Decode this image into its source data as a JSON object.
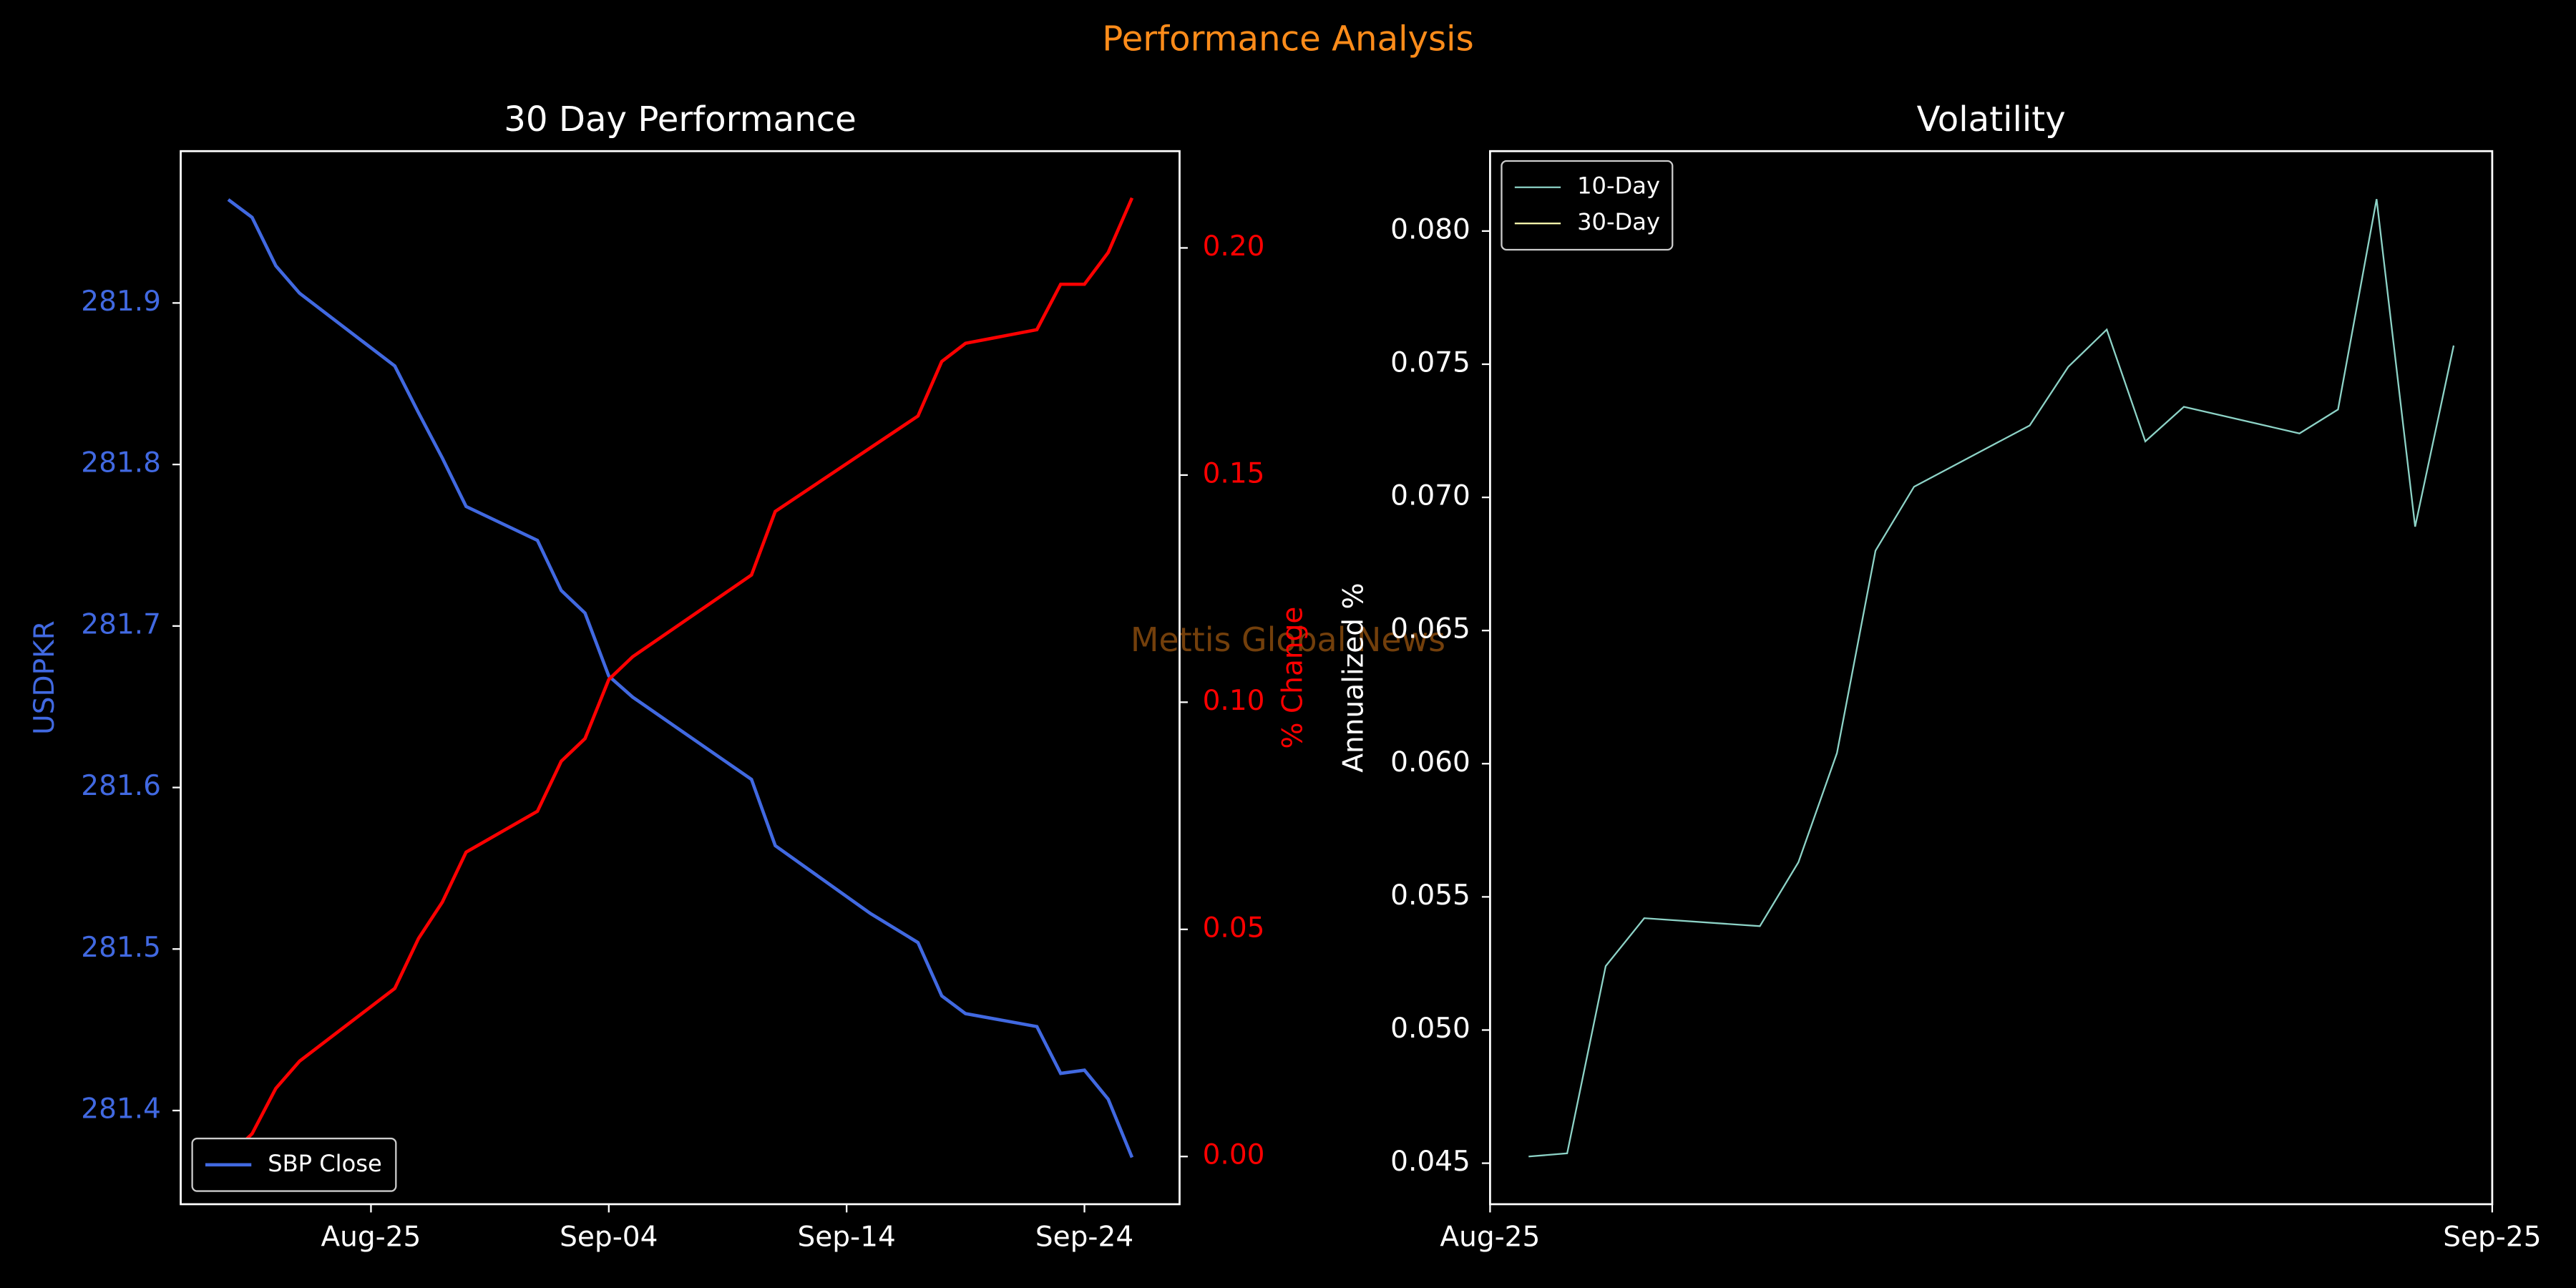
{
  "title": "Performance Analysis",
  "watermark": "Mettis Global News",
  "chart_data": [
    {
      "type": "line",
      "title": "30 Day Performance",
      "x": [
        "Aug-19",
        "Aug-20",
        "Aug-21",
        "Aug-22",
        "Aug-26",
        "Aug-27",
        "Aug-28",
        "Aug-29",
        "Sep-01",
        "Sep-02",
        "Sep-03",
        "Sep-04",
        "Sep-05",
        "Sep-10",
        "Sep-11",
        "Sep-15",
        "Sep-17",
        "Sep-18",
        "Sep-19",
        "Sep-22",
        "Sep-23",
        "Sep-24",
        "Sep-25",
        "Sep-26"
      ],
      "xlim": [
        "Aug-17",
        "Sep-28"
      ],
      "xticks": [
        "Aug-25",
        "Sep-04",
        "Sep-14",
        "Sep-24"
      ],
      "ylabel": "USDPKR",
      "ycolor": "#4169e1",
      "ylim": [
        281.342,
        281.994
      ],
      "yticks": [
        281.4,
        281.5,
        281.6,
        281.7,
        281.8,
        281.9
      ],
      "y2label": "% Change",
      "y2color": "#ff0000",
      "y2lim": [
        -0.0105,
        0.2213
      ],
      "y2ticks": [
        {
          "value": 0,
          "label": "0.00"
        },
        0.05,
        {
          "value": 0.1,
          "label": "0.10"
        },
        0.15,
        {
          "value": 0.2,
          "label": "0.20"
        }
      ],
      "legend": "lower left",
      "series": [
        {
          "name": "SBP Close",
          "color": "#4169e1",
          "values": [
            281.964,
            281.953,
            281.923,
            281.906,
            281.861,
            281.832,
            281.804,
            281.774,
            281.753,
            281.722,
            281.708,
            281.669,
            281.656,
            281.605,
            281.564,
            281.522,
            281.504,
            281.471,
            281.46,
            281.452,
            281.423,
            281.425,
            281.407,
            281.371
          ]
        },
        {
          "color": "#ff0000",
          "axis": "y2",
          "values": [
            0.0,
            0.005,
            0.015,
            0.021,
            0.037,
            0.048,
            0.056,
            0.067,
            0.076,
            0.087,
            0.092,
            0.105,
            0.11,
            0.128,
            0.142,
            0.156,
            0.163,
            0.175,
            0.179,
            0.182,
            0.192,
            0.192,
            0.199,
            0.211
          ]
        }
      ]
    },
    {
      "type": "line",
      "title": "Volatility",
      "x": [
        1,
        2,
        3,
        4,
        7,
        8,
        9,
        10,
        11,
        14,
        15,
        16,
        17,
        18,
        21,
        22,
        23,
        24,
        25
      ],
      "xlim": [
        0,
        26
      ],
      "xticks": [
        {
          "value": 0,
          "label": "Aug-25"
        },
        {
          "value": 26,
          "label": "Sep-25"
        }
      ],
      "ylabel": "Annualized %",
      "ylim": [
        0.04346,
        0.083
      ],
      "yticks": [
        0.045,
        {
          "value": 0.05,
          "label": "0.050"
        },
        0.055,
        {
          "value": 0.06,
          "label": "0.060"
        },
        0.065,
        {
          "value": 0.07,
          "label": "0.070"
        },
        0.075,
        {
          "value": 0.08,
          "label": "0.080"
        }
      ],
      "legend": "upper left",
      "series": [
        {
          "name": "10-Day",
          "color": "#8dd3c7",
          "values": [
            0.04525,
            0.04537,
            0.0524,
            0.0542,
            0.0539,
            0.0563,
            0.0604,
            0.068,
            0.0704,
            0.0727,
            0.0749,
            0.0763,
            0.0721,
            0.0734,
            0.0724,
            0.0733,
            0.0812,
            0.0689,
            0.0757
          ]
        },
        {
          "name": "30-Day",
          "color": "#ffffb3",
          "values": [
            null,
            null,
            null,
            null,
            null,
            null,
            null,
            null,
            null,
            null,
            null,
            null,
            null,
            null,
            null,
            null,
            null,
            null,
            null
          ]
        }
      ]
    }
  ]
}
